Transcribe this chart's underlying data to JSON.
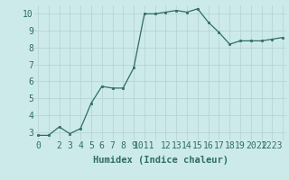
{
  "x": [
    0,
    1,
    2,
    3,
    4,
    5,
    6,
    7,
    8,
    9,
    10,
    11,
    12,
    13,
    14,
    15,
    16,
    17,
    18,
    19,
    20,
    21,
    22,
    23
  ],
  "y": [
    2.8,
    2.8,
    3.3,
    2.9,
    3.2,
    4.7,
    5.7,
    5.6,
    5.6,
    6.8,
    10.0,
    10.0,
    10.1,
    10.2,
    10.1,
    10.3,
    9.5,
    8.9,
    8.2,
    8.4,
    8.4,
    8.4,
    8.5,
    8.6
  ],
  "xtick_labels": [
    "0",
    "",
    "2",
    "3",
    "4",
    "5",
    "6",
    "7",
    "8",
    "9",
    "1011",
    "12",
    "13",
    "14",
    "15",
    "16",
    "17",
    "18",
    "19",
    "20",
    "21",
    "2223",
    "",
    ""
  ],
  "xlabel": "Humidex (Indice chaleur)",
  "ylim": [
    2.5,
    10.5
  ],
  "xlim": [
    -0.3,
    23.3
  ],
  "yticks": [
    3,
    4,
    5,
    6,
    7,
    8,
    9,
    10
  ],
  "line_color": "#2d6e63",
  "bg_color": "#cdeaea",
  "grid_color": "#b8d4d4",
  "tick_color": "#2d6e63",
  "label_color": "#2d6e63",
  "xlabel_fontsize": 7.5,
  "tick_fontsize": 7
}
